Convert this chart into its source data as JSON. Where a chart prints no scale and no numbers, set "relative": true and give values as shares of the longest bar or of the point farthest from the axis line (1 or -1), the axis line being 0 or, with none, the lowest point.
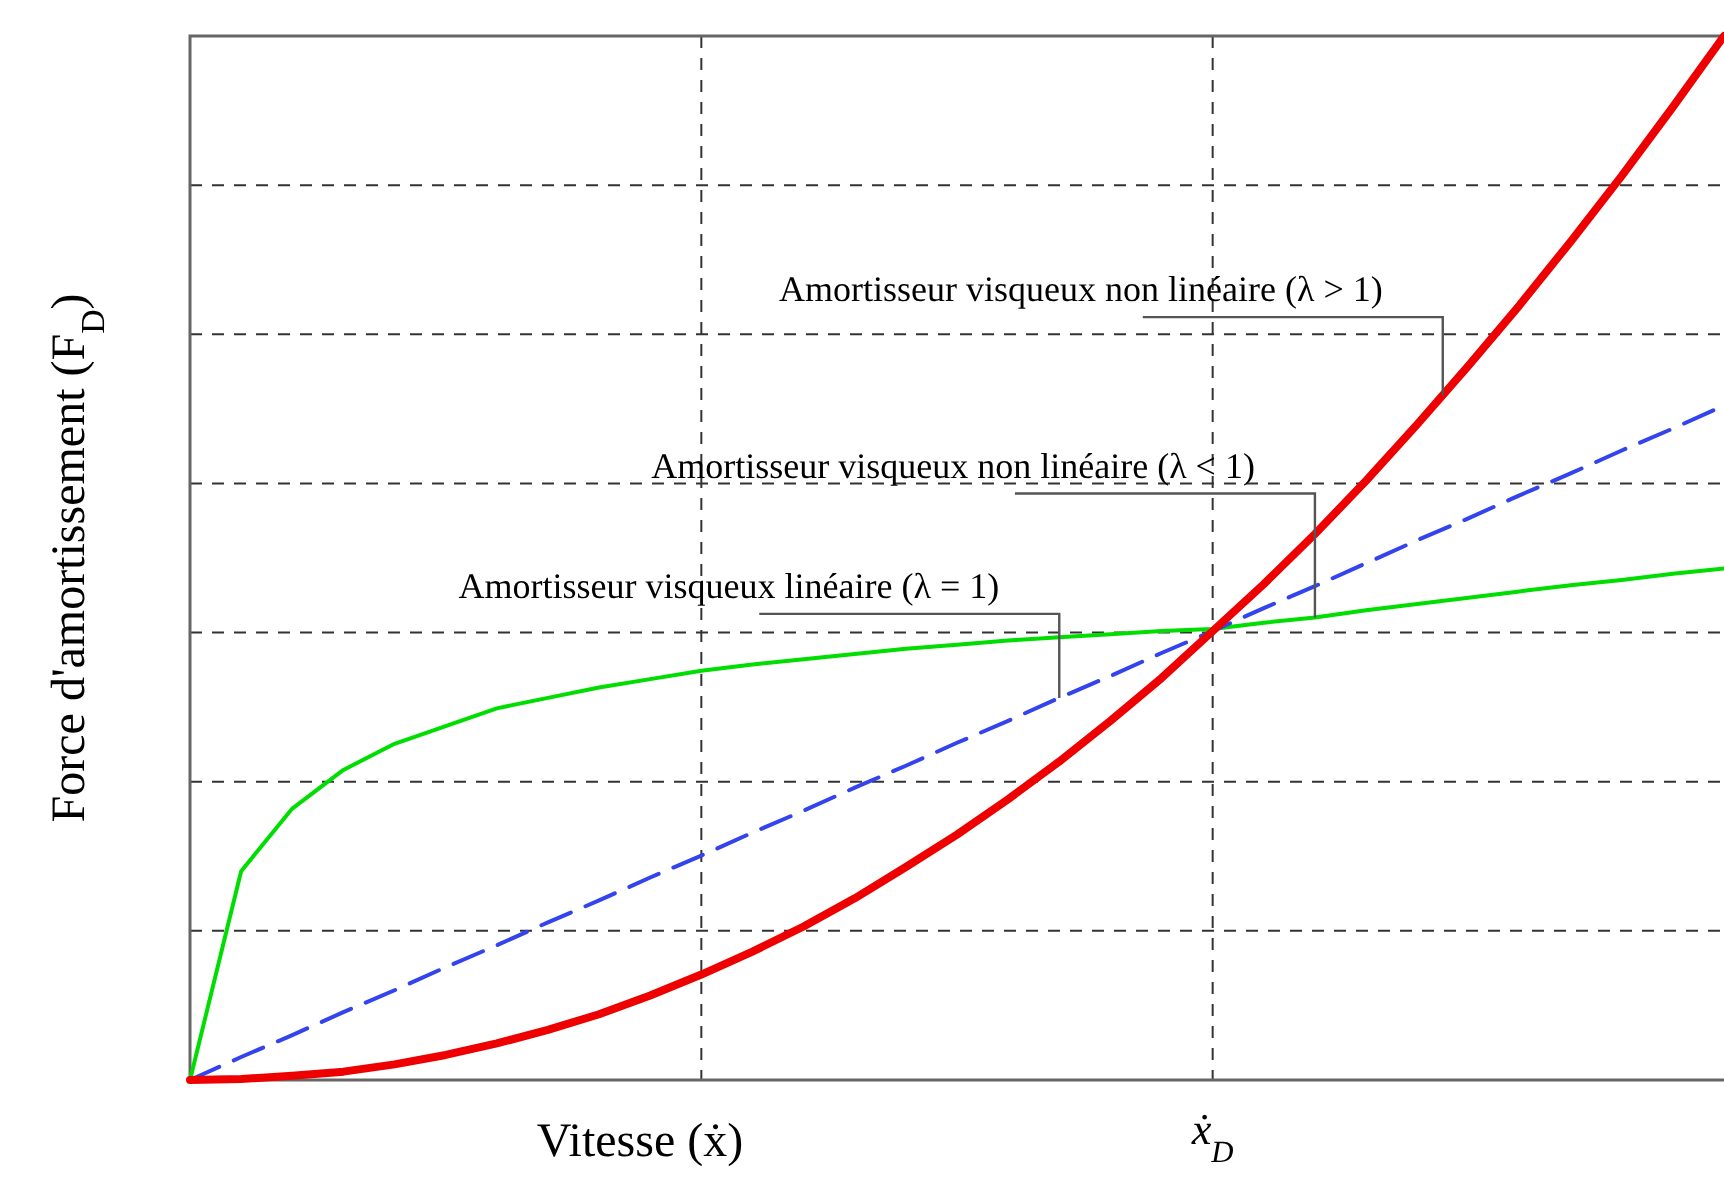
{
  "chart_data": {
    "type": "line",
    "relative": true,
    "xlabel": "Vitesse (ẋ)",
    "ylabel": "Force d'amortissement (F$_{D}$)",
    "grid": true,
    "categories": [
      null,
      null,
      null,
      null,
      null,
      null,
      null,
      null,
      null,
      null,
      null,
      null,
      null,
      null,
      null,
      null,
      null,
      null,
      null,
      null,
      null,
      null,
      null,
      null,
      null,
      null,
      null,
      null,
      null,
      null,
      null
    ],
    "series": [
      {
        "color": "#00dd00",
        "line_style": "solid",
        "values": [
          0,
          0.2,
          0.26,
          0.297,
          0.322,
          0.339,
          0.356,
          0.366,
          0.376,
          0.384,
          0.392,
          0.398,
          0.403,
          0.408,
          0.413,
          0.417,
          0.421,
          0.424,
          0.427,
          0.43,
          0.432,
          0.438,
          0.443,
          0.45,
          0.456,
          0.462,
          0.468,
          0.474,
          0.479,
          0.485,
          0.49
        ]
      },
      {
        "color": "#3344ee",
        "line_style": "dashed",
        "values": [
          0,
          0.022,
          0.043,
          0.065,
          0.086,
          0.108,
          0.129,
          0.151,
          0.172,
          0.194,
          0.215,
          0.237,
          0.258,
          0.28,
          0.301,
          0.323,
          0.344,
          0.366,
          0.387,
          0.409,
          0.43,
          0.452,
          0.473,
          0.495,
          0.517,
          0.538,
          0.56,
          0.581,
          0.603,
          0.624,
          0.646
        ]
      },
      {
        "color": "#ee0000",
        "line_style": "solid",
        "values": [
          0,
          0.001,
          0.004,
          0.008,
          0.015,
          0.024,
          0.035,
          0.048,
          0.063,
          0.081,
          0.101,
          0.123,
          0.147,
          0.174,
          0.204,
          0.235,
          0.269,
          0.305,
          0.344,
          0.385,
          0.43,
          0.475,
          0.523,
          0.574,
          0.628,
          0.684,
          0.742,
          0.803,
          0.866,
          0.932,
          1
        ]
      }
    ],
    "annotations": [
      "Amortisseur visqueux non linéaire (λ > 1)",
      "Amortisseur visqueux non linéaire (λ < 1)",
      "Amortisseur visqueux linéaire (λ = 1)",
      "ẋ$_{D}$"
    ]
  }
}
